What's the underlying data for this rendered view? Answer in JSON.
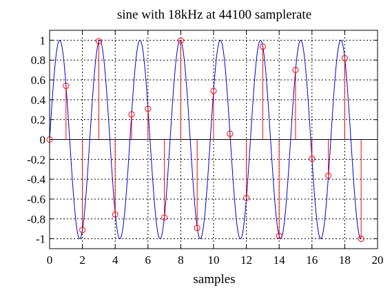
{
  "chart_data": {
    "type": "line",
    "title": "sine with 18kHz at 44100 samplerate",
    "xlabel": "samples",
    "ylabel": "",
    "xlim": [
      0,
      20
    ],
    "ylim": [
      -1.1,
      1.1
    ],
    "x_ticks": [
      0,
      2,
      4,
      6,
      8,
      10,
      12,
      14,
      16,
      18,
      20
    ],
    "y_ticks": [
      1,
      0.8,
      0.6,
      0.4,
      0.2,
      0,
      -0.2,
      -0.4,
      -0.6,
      -0.8,
      -1
    ],
    "x_tick_labels": [
      "0",
      "2",
      "4",
      "6",
      "8",
      "10",
      "12",
      "14",
      "16",
      "18",
      "20"
    ],
    "y_tick_labels": [
      "1",
      "0.8",
      "0.6",
      "0.4",
      "0.2",
      "0",
      "-0.2",
      "-0.4",
      "-0.6",
      "-0.8",
      "-1"
    ],
    "grid": true,
    "frequency_hz": 18000,
    "samplerate_hz": 44100,
    "series": [
      {
        "type": "line",
        "color": "#0000cc",
        "x_range": [
          0,
          19
        ],
        "function": "sin(2*pi*18000/44100*x)"
      },
      {
        "type": "stem",
        "color": "#ff0000",
        "marker": "circle-open",
        "x": [
          0,
          1,
          2,
          3,
          4,
          5,
          6,
          7,
          8,
          9,
          10,
          11,
          12,
          13,
          14,
          15,
          16,
          17,
          18,
          19
        ],
        "values": [
          0,
          0.541,
          -0.911,
          0.99,
          -0.756,
          0.253,
          0.31,
          -0.786,
          0.997,
          -0.891,
          0.49,
          0.058,
          -0.589,
          0.936,
          -0.971,
          0.701,
          -0.194,
          -0.365,
          0.819,
          -1.0
        ]
      }
    ]
  }
}
